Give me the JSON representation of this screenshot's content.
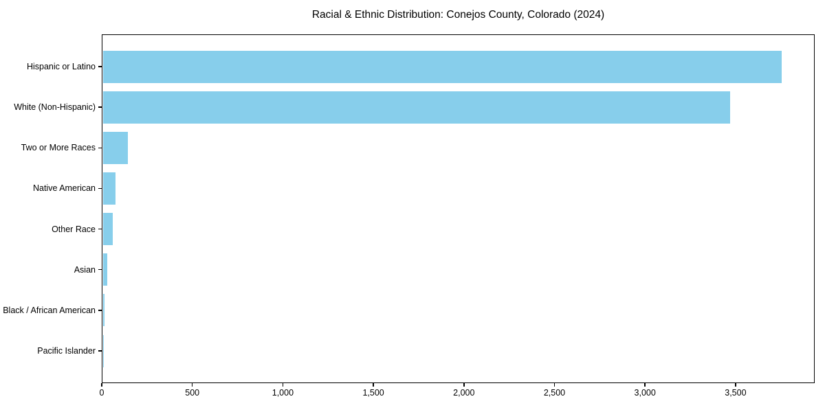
{
  "chart_data": {
    "type": "bar",
    "orientation": "horizontal",
    "title": "Racial & Ethnic Distribution: Conejos County, Colorado (2024)",
    "categories": [
      "Hispanic or Latino",
      "White (Non-Hispanic)",
      "Two or More Races",
      "Native American",
      "Other Race",
      "Asian",
      "Black / African American",
      "Pacific Islander"
    ],
    "values": [
      3750,
      3465,
      140,
      72,
      56,
      26,
      8,
      7
    ],
    "xlabel": "",
    "ylabel": "",
    "xlim": [
      0,
      3937
    ],
    "xticks": [
      {
        "value": 0,
        "label": "0"
      },
      {
        "value": 500,
        "label": "500"
      },
      {
        "value": 1000,
        "label": "1,000"
      },
      {
        "value": 1500,
        "label": "1,500"
      },
      {
        "value": 2000,
        "label": "2,000"
      },
      {
        "value": 2500,
        "label": "2,500"
      },
      {
        "value": 3000,
        "label": "3,000"
      },
      {
        "value": 3500,
        "label": "3,500"
      }
    ],
    "bar_color": "#87CEEB",
    "grid": false,
    "legend": null,
    "sort_order": "descending",
    "background_color": "#ffffff",
    "text_color": "#000000"
  }
}
